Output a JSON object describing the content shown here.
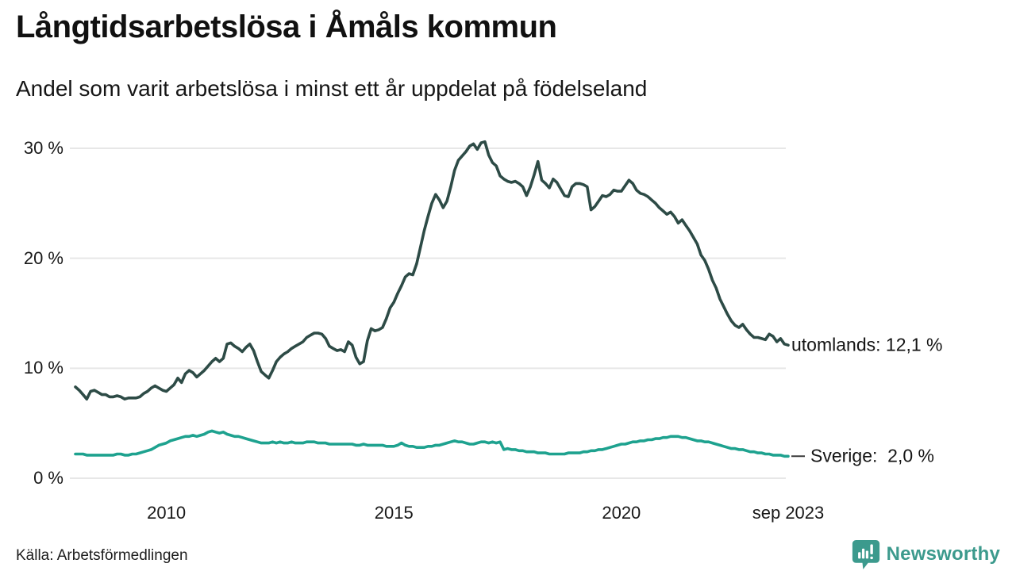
{
  "header": {
    "title": "Långtidsarbetslösa i Åmåls kommun",
    "subtitle": "Andel som varit arbetslösa i minst ett år uppdelat på födelseland"
  },
  "footer": {
    "source": "Källa: Arbetsförmedlingen",
    "brand_name": "Newsworthy",
    "brand_icon": "newsworthy-speech-bubble-bar-chart-icon"
  },
  "colors": {
    "series_utomlands": "#2d4b46",
    "series_sverige": "#1ea28f",
    "gridline": "#e7e7e7",
    "leader_dash": "#3a3a3a",
    "text": "#141414",
    "brand": "#3c9a8d",
    "background": "#ffffff"
  },
  "chart_data": {
    "type": "line",
    "title": "Långtidsarbetslösa i Åmåls kommun",
    "subtitle": "Andel som varit arbetslösa i minst ett år uppdelat på födelseland",
    "x_unit": "month",
    "x_start": "2008-01",
    "x_end": "2023-09",
    "ylim": [
      0,
      32
    ],
    "grid": "horizontal",
    "legend_position": "end-of-line-labels",
    "yticks": [
      {
        "value": 30,
        "label": "30 %"
      },
      {
        "value": 20,
        "label": "20 %"
      },
      {
        "value": 10,
        "label": "10 %"
      },
      {
        "value": 0,
        "label": "0 %"
      }
    ],
    "xticks": [
      {
        "month_index": 24,
        "label": "2010"
      },
      {
        "month_index": 84,
        "label": "2015"
      },
      {
        "month_index": 144,
        "label": "2020"
      },
      {
        "month_index": 188,
        "label": "sep 2023"
      }
    ],
    "series": [
      {
        "name": "utomlands",
        "end_label": "utomlands: 12,1 %",
        "end_value_label": "12,1 %",
        "color": "#2d4b46",
        "leader": false,
        "values": [
          8.3,
          8.0,
          7.6,
          7.2,
          7.9,
          8.0,
          7.8,
          7.6,
          7.6,
          7.4,
          7.4,
          7.5,
          7.4,
          7.2,
          7.3,
          7.3,
          7.3,
          7.4,
          7.7,
          7.9,
          8.2,
          8.4,
          8.2,
          8.0,
          7.9,
          8.2,
          8.5,
          9.1,
          8.7,
          9.5,
          9.8,
          9.6,
          9.2,
          9.5,
          9.8,
          10.2,
          10.6,
          10.9,
          10.6,
          10.9,
          12.2,
          12.3,
          12.0,
          11.8,
          11.5,
          11.9,
          12.2,
          11.6,
          10.6,
          9.7,
          9.4,
          9.1,
          9.8,
          10.6,
          11.0,
          11.3,
          11.5,
          11.8,
          12.0,
          12.2,
          12.4,
          12.8,
          13.0,
          13.2,
          13.2,
          13.1,
          12.7,
          12.0,
          11.8,
          11.6,
          11.7,
          11.5,
          12.4,
          12.1,
          11.0,
          10.4,
          10.6,
          12.5,
          13.6,
          13.4,
          13.5,
          13.7,
          14.5,
          15.5,
          16.0,
          16.8,
          17.5,
          18.3,
          18.6,
          18.5,
          19.5,
          21.0,
          22.5,
          23.8,
          25.0,
          25.8,
          25.3,
          24.6,
          25.2,
          26.5,
          28.0,
          28.9,
          29.3,
          29.7,
          30.2,
          30.4,
          29.9,
          30.5,
          30.6,
          29.4,
          28.7,
          28.4,
          27.5,
          27.2,
          27.0,
          26.9,
          27.0,
          26.8,
          26.5,
          25.7,
          26.5,
          27.6,
          28.8,
          27.1,
          26.8,
          26.4,
          27.2,
          26.9,
          26.3,
          25.7,
          25.6,
          26.5,
          26.8,
          26.8,
          26.7,
          26.5,
          24.4,
          24.7,
          25.2,
          25.7,
          25.6,
          25.8,
          26.2,
          26.1,
          26.1,
          26.6,
          27.1,
          26.8,
          26.2,
          25.9,
          25.8,
          25.6,
          25.3,
          25.0,
          24.6,
          24.3,
          24.0,
          24.2,
          23.8,
          23.2,
          23.5,
          23.0,
          22.5,
          21.9,
          21.3,
          20.3,
          19.8,
          19.0,
          18.0,
          17.3,
          16.3,
          15.6,
          14.9,
          14.3,
          13.9,
          13.7,
          14.0,
          13.5,
          13.1,
          12.8,
          12.8,
          12.7,
          12.6,
          13.1,
          12.9,
          12.4,
          12.7,
          12.2,
          12.1
        ]
      },
      {
        "name": "Sverige",
        "end_label": "Sverige:  2,0 %",
        "end_value_label": "2,0 %",
        "color": "#1ea28f",
        "leader": true,
        "values": [
          2.2,
          2.2,
          2.2,
          2.1,
          2.1,
          2.1,
          2.1,
          2.1,
          2.1,
          2.1,
          2.1,
          2.2,
          2.2,
          2.1,
          2.1,
          2.2,
          2.2,
          2.3,
          2.4,
          2.5,
          2.6,
          2.8,
          3.0,
          3.1,
          3.2,
          3.4,
          3.5,
          3.6,
          3.7,
          3.8,
          3.8,
          3.9,
          3.8,
          3.9,
          4.0,
          4.2,
          4.3,
          4.2,
          4.1,
          4.2,
          4.0,
          3.9,
          3.8,
          3.8,
          3.7,
          3.6,
          3.5,
          3.4,
          3.3,
          3.2,
          3.2,
          3.2,
          3.3,
          3.2,
          3.3,
          3.2,
          3.2,
          3.3,
          3.2,
          3.2,
          3.2,
          3.3,
          3.3,
          3.3,
          3.2,
          3.2,
          3.2,
          3.1,
          3.1,
          3.1,
          3.1,
          3.1,
          3.1,
          3.1,
          3.0,
          3.0,
          3.1,
          3.0,
          3.0,
          3.0,
          3.0,
          3.0,
          2.9,
          2.9,
          2.9,
          3.0,
          3.2,
          3.0,
          2.9,
          2.9,
          2.8,
          2.8,
          2.8,
          2.9,
          2.9,
          3.0,
          3.0,
          3.1,
          3.2,
          3.3,
          3.4,
          3.3,
          3.3,
          3.2,
          3.1,
          3.1,
          3.2,
          3.3,
          3.3,
          3.2,
          3.3,
          3.2,
          3.3,
          2.6,
          2.7,
          2.6,
          2.6,
          2.5,
          2.5,
          2.4,
          2.4,
          2.4,
          2.3,
          2.3,
          2.3,
          2.2,
          2.2,
          2.2,
          2.2,
          2.2,
          2.3,
          2.3,
          2.3,
          2.3,
          2.4,
          2.4,
          2.5,
          2.5,
          2.6,
          2.6,
          2.7,
          2.8,
          2.9,
          3.0,
          3.1,
          3.1,
          3.2,
          3.3,
          3.3,
          3.4,
          3.4,
          3.5,
          3.5,
          3.6,
          3.6,
          3.7,
          3.7,
          3.8,
          3.8,
          3.8,
          3.7,
          3.7,
          3.6,
          3.5,
          3.4,
          3.4,
          3.3,
          3.3,
          3.2,
          3.1,
          3.0,
          2.9,
          2.8,
          2.7,
          2.7,
          2.6,
          2.6,
          2.5,
          2.4,
          2.4,
          2.3,
          2.3,
          2.2,
          2.2,
          2.1,
          2.1,
          2.1,
          2.0,
          2.0
        ]
      }
    ]
  }
}
